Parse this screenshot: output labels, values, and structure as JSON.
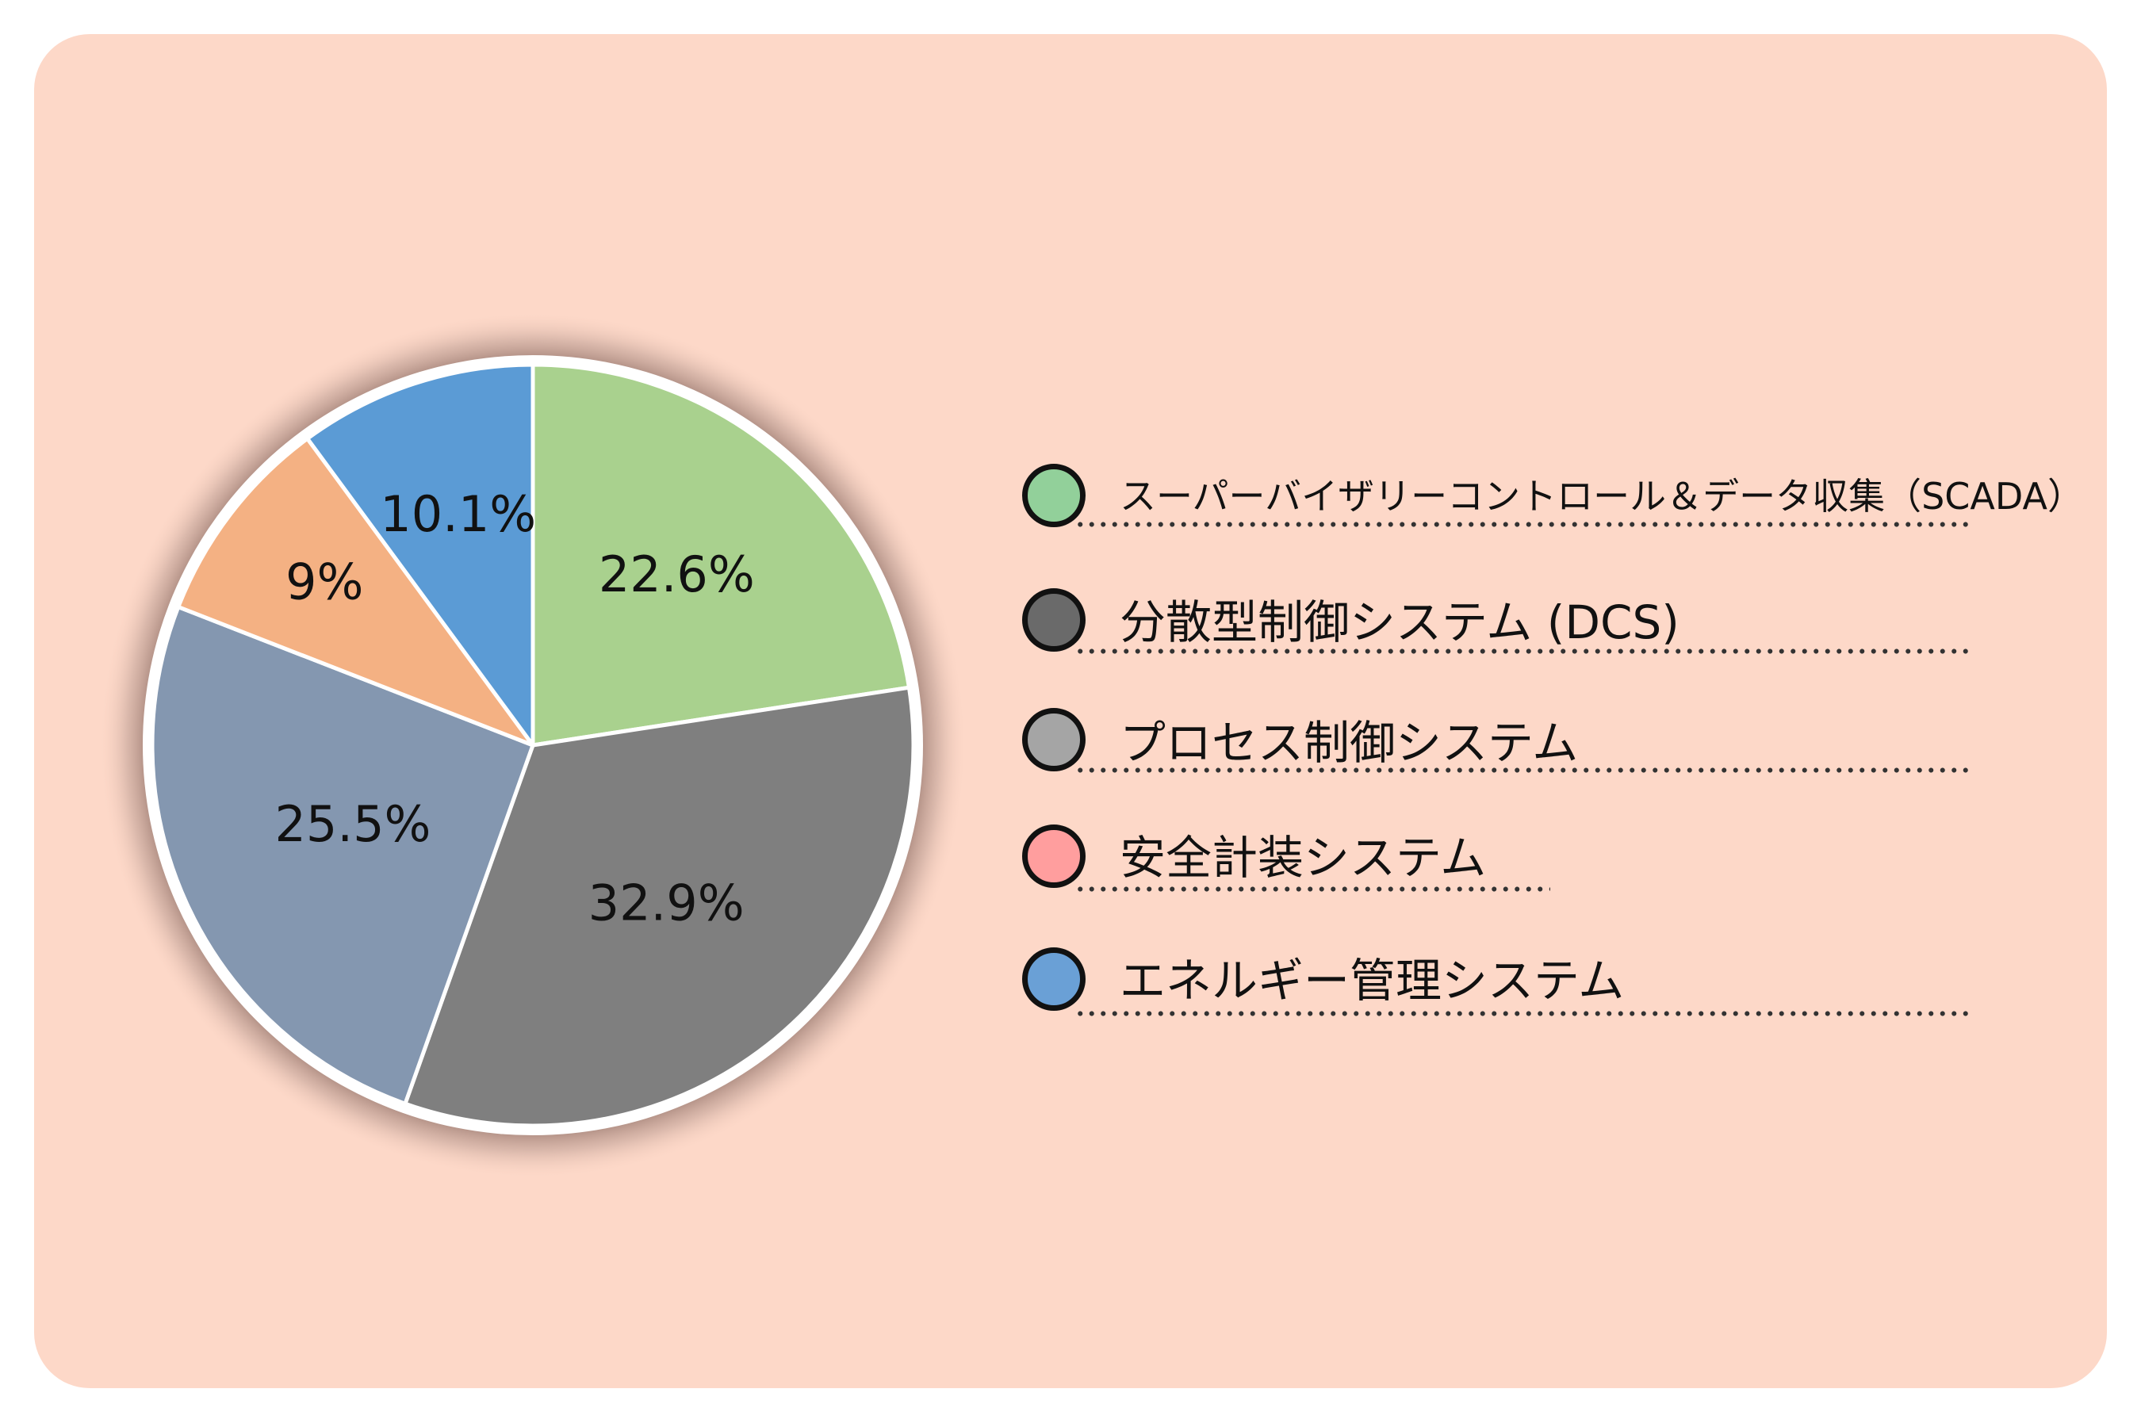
{
  "chart_data": {
    "type": "pie",
    "slices": [
      {
        "name": "スーパーバイザリーコントロール＆データ収集（SCADA）",
        "value": 22.6,
        "label": "22.6%",
        "color": "#a9d18e"
      },
      {
        "name": "分散型制御システム (DCS)",
        "value": 32.9,
        "label": "32.9%",
        "color": "#7f7f7f"
      },
      {
        "name": "プロセス制御システム",
        "value": 25.5,
        "label": "25.5%",
        "color": "#8497b0"
      },
      {
        "name": "安全計装システム",
        "value": 9.0,
        "label": "9%",
        "color": "#f4b183"
      },
      {
        "name": "エネルギー管理システム",
        "value": 10.1,
        "label": "10.1%",
        "color": "#5b9bd5"
      }
    ],
    "start_angle_deg": 0,
    "direction": "clockwise",
    "legend_position": "right"
  },
  "legend": {
    "items": [
      {
        "label": "スーパーバイザリーコントロール＆データ収集（SCADA）",
        "marker_color": "#92d09a"
      },
      {
        "label": "分散型制御システム (DCS)",
        "marker_color": "#6a6a6a"
      },
      {
        "label": "プロセス制御システム",
        "marker_color": "#a5a5a5"
      },
      {
        "label": "安全計装システム",
        "marker_color": "#ff9e9e"
      },
      {
        "label": "エネルギー管理システム",
        "marker_color": "#6aa0d6"
      }
    ]
  },
  "colors": {
    "card_background": "#fdd8c8",
    "page_background": "#ffffff"
  }
}
